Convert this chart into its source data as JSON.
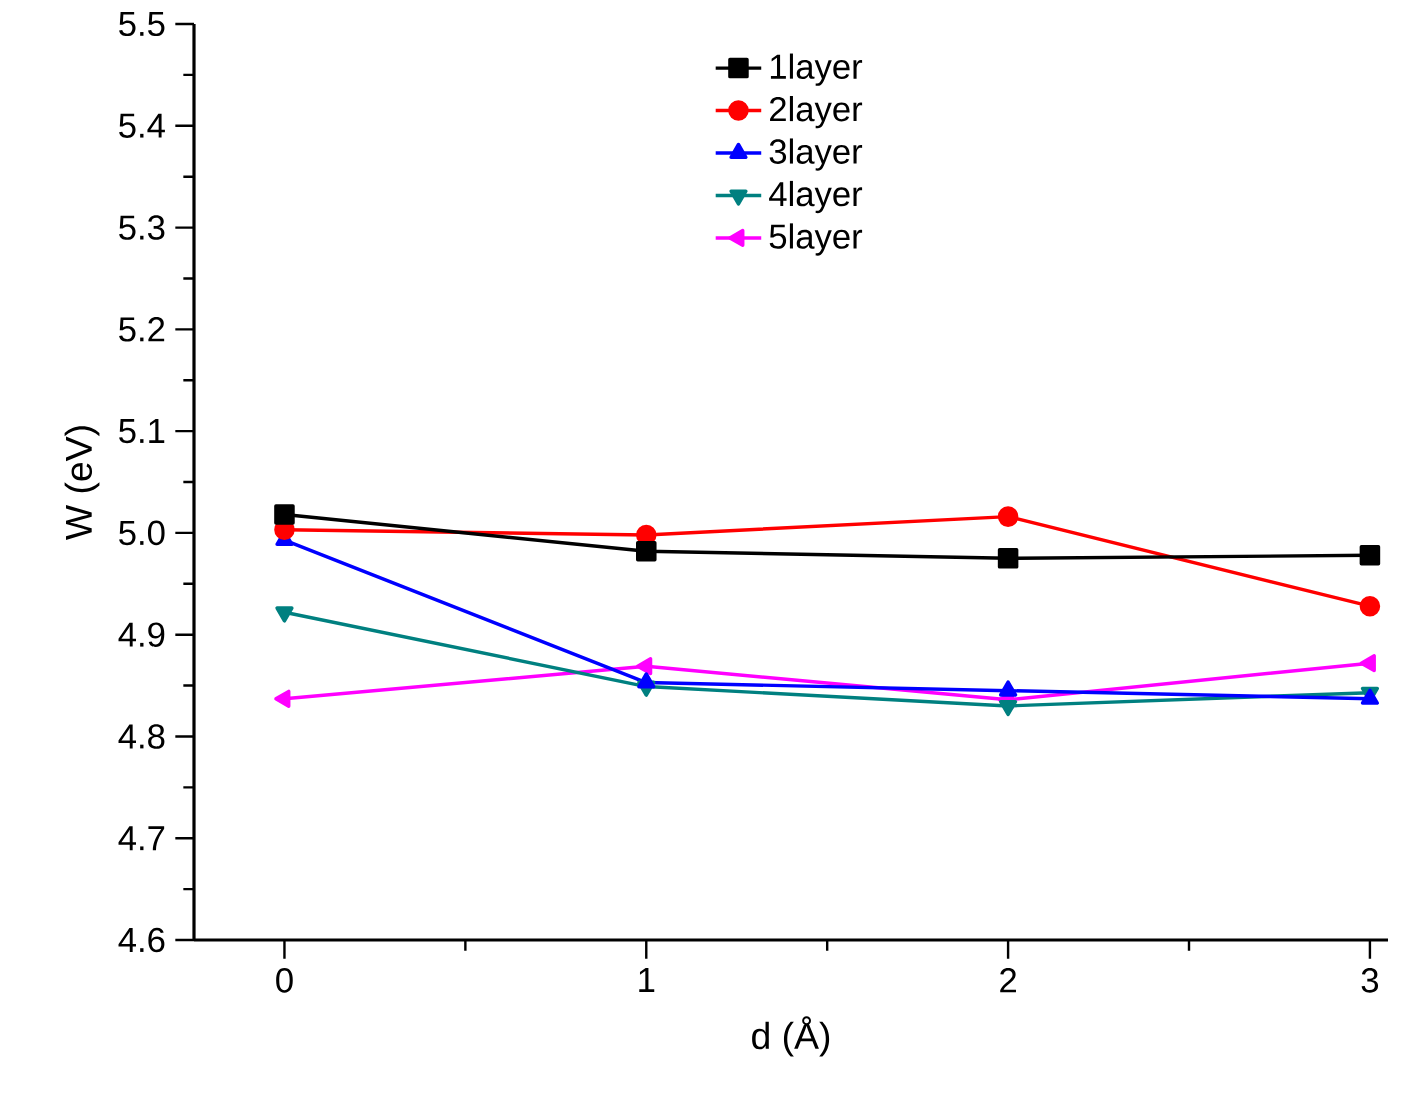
{
  "chart_data": {
    "type": "line",
    "xlabel": "d (Å)",
    "ylabel": "W (eV)",
    "x": [
      0,
      1,
      2,
      3
    ],
    "series": [
      {
        "name": "1layer",
        "color": "#000000",
        "marker": "square",
        "values": [
          5.018,
          4.982,
          4.975,
          4.978
        ]
      },
      {
        "name": "2layer",
        "color": "#ff0000",
        "marker": "circle",
        "values": [
          5.003,
          4.998,
          5.016,
          4.928
        ]
      },
      {
        "name": "3layer",
        "color": "#0000ff",
        "marker": "triangle",
        "values": [
          4.993,
          4.853,
          4.845,
          4.837
        ]
      },
      {
        "name": "4layer",
        "color": "#008080",
        "marker": "triangle-down",
        "values": [
          4.922,
          4.849,
          4.83,
          4.843
        ]
      },
      {
        "name": "5layer",
        "color": "#ff00ff",
        "marker": "triangle-left",
        "values": [
          4.837,
          4.869,
          4.836,
          4.872
        ]
      }
    ],
    "xlim": [
      -0.25,
      3.05
    ],
    "ylim": [
      4.6,
      5.5
    ],
    "xticks": [
      0,
      1,
      2,
      3
    ],
    "yticks": [
      {
        "value": 4.6,
        "label": "4.6"
      },
      {
        "value": 4.7,
        "label": "4.7"
      },
      {
        "value": 4.8,
        "label": "4.8"
      },
      {
        "value": 4.9,
        "label": "4.9"
      },
      {
        "value": 5.0,
        "label": "5.0"
      },
      {
        "value": 5.1,
        "label": "5.1"
      },
      {
        "value": 5.2,
        "label": "5.2"
      },
      {
        "value": 5.3,
        "label": "5.3"
      },
      {
        "value": 5.4,
        "label": "5.4"
      },
      {
        "value": 5.5,
        "label": "5.5"
      }
    ],
    "grid": false,
    "legend": "top",
    "line_style": "solid"
  }
}
